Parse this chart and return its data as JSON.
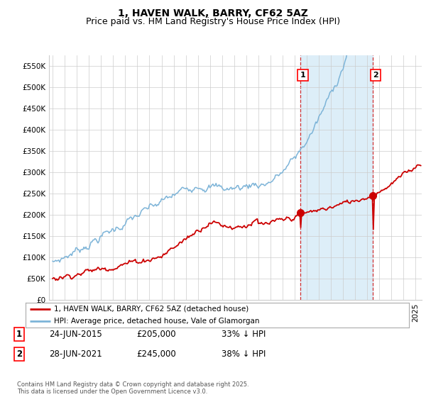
{
  "title": "1, HAVEN WALK, BARRY, CF62 5AZ",
  "subtitle": "Price paid vs. HM Land Registry's House Price Index (HPI)",
  "ylabel_ticks": [
    "£0",
    "£50K",
    "£100K",
    "£150K",
    "£200K",
    "£250K",
    "£300K",
    "£350K",
    "£400K",
    "£450K",
    "£500K",
    "£550K"
  ],
  "ytick_values": [
    0,
    50000,
    100000,
    150000,
    200000,
    250000,
    300000,
    350000,
    400000,
    450000,
    500000,
    550000
  ],
  "ylim": [
    0,
    575000
  ],
  "xlim_start": 1994.7,
  "xlim_end": 2025.5,
  "line1_color": "#cc0000",
  "line2_color": "#7db4d8",
  "shade_color": "#ddeef8",
  "marker1_date": 2015.47,
  "marker1_value": 205000,
  "marker2_date": 2021.47,
  "marker2_value": 245000,
  "vline1_date": 2015.47,
  "vline2_date": 2021.47,
  "legend_line1": "1, HAVEN WALK, BARRY, CF62 5AZ (detached house)",
  "legend_line2": "HPI: Average price, detached house, Vale of Glamorgan",
  "table_row1": [
    "1",
    "24-JUN-2015",
    "£205,000",
    "33% ↓ HPI"
  ],
  "table_row2": [
    "2",
    "28-JUN-2021",
    "£245,000",
    "38% ↓ HPI"
  ],
  "footnote": "Contains HM Land Registry data © Crown copyright and database right 2025.\nThis data is licensed under the Open Government Licence v3.0.",
  "bg_color": "#ffffff",
  "grid_color": "#cccccc",
  "title_fontsize": 10,
  "subtitle_fontsize": 9,
  "tick_fontsize": 7.5
}
